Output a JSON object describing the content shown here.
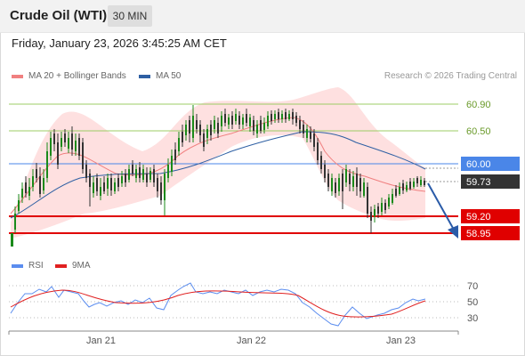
{
  "header": {
    "instrument": "Crude Oil (WTI)",
    "timeframe": "30 MIN"
  },
  "datetime": "Friday, January 23, 2026 3:45:25 AM CET",
  "legend": {
    "ma20_label": "MA 20 + Bollinger Bands",
    "ma20_color": "#f08080",
    "ma50_label": "MA 50",
    "ma50_color": "#2e5fa3"
  },
  "credit": "Research © 2026 Trading Central",
  "levels": {
    "r2": "60.90",
    "r1": "60.50",
    "pivot": "60.00",
    "last": "59.73",
    "s1": "59.20",
    "s2": "58.95",
    "resistance_color": "#9ccc65",
    "pivot_color": "#4a86e8",
    "support_color": "#e00000",
    "last_color": "#333333"
  },
  "rsi": {
    "rsi_label": "RSI",
    "rsi_color": "#5b8def",
    "ma_label": "9MA",
    "ma_color": "#e02020",
    "ticks": [
      "70",
      "50",
      "30"
    ]
  },
  "x_axis": {
    "ticks": [
      "Jan 21",
      "Jan 22",
      "Jan 23"
    ]
  }
}
